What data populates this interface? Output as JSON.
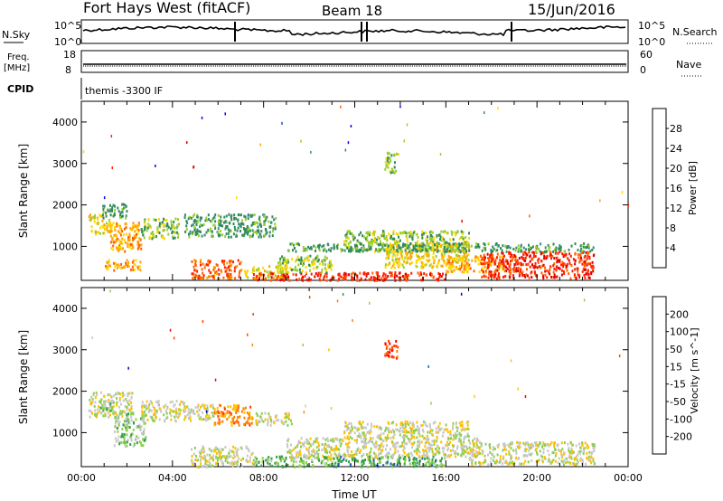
{
  "header": {
    "title": "Fort Hays West (fitACF)",
    "beam": "Beam 18",
    "date": "15/Jun/2016"
  },
  "top_panels": {
    "nsky_label": "N.Sky",
    "nsearch_label": "N.Search",
    "nsky_ticks": [
      "10^5",
      "10^0"
    ],
    "nsearch_ticks": [
      "10^5",
      "10^0"
    ],
    "freq_label_1": "Freq.",
    "freq_label_2": "[MHz]",
    "freq_ticks": [
      "18",
      "8"
    ],
    "nave_label": "Nave",
    "nave_ticks": [
      "60",
      "0"
    ],
    "cpid_label": "CPID",
    "cpid_value": "themis -3300 IF"
  },
  "chart_data": [
    {
      "type": "heatmap",
      "name": "power",
      "ylabel": "Slant Range [km]",
      "ylim": [
        180,
        4500
      ],
      "yticks": [
        1000,
        2000,
        3000,
        4000
      ],
      "xlim": [
        0,
        24
      ],
      "colorbar_label": "Power [dB]",
      "colorbar_ticks": [
        "28",
        "24",
        "20",
        "16",
        "12",
        "8",
        "4"
      ],
      "colors": [
        "#0000ff",
        "#2050c8",
        "#3a8a7a",
        "#2e8b57",
        "#9acd32",
        "#ffd700",
        "#ffa500",
        "#ff6000",
        "#ff2000",
        "#e00000"
      ],
      "patches": [
        {
          "t": [
            0.3,
            1.3
          ],
          "r": [
            1300,
            1800
          ],
          "c": 5
        },
        {
          "t": [
            0.9,
            2.0
          ],
          "r": [
            1700,
            2050
          ],
          "c": 3
        },
        {
          "t": [
            1.2,
            2.6
          ],
          "r": [
            900,
            1600
          ],
          "c": 6
        },
        {
          "t": [
            1.0,
            2.6
          ],
          "r": [
            450,
            700
          ],
          "c": 6
        },
        {
          "t": [
            2.6,
            4.3
          ],
          "r": [
            1200,
            1700
          ],
          "c": 4
        },
        {
          "t": [
            4.5,
            8.5
          ],
          "r": [
            1250,
            1800
          ],
          "c": 3
        },
        {
          "t": [
            4.8,
            7.0
          ],
          "r": [
            250,
            700
          ],
          "c": 7
        },
        {
          "t": [
            7.0,
            9.0
          ],
          "r": [
            250,
            550
          ],
          "c": 5
        },
        {
          "t": [
            7.5,
            16.0
          ],
          "r": [
            200,
            400
          ],
          "c": 8
        },
        {
          "t": [
            8.5,
            11.0
          ],
          "r": [
            400,
            800
          ],
          "c": 4
        },
        {
          "t": [
            11.5,
            17.0
          ],
          "r": [
            900,
            1400
          ],
          "c": 4
        },
        {
          "t": [
            13.3,
            17.0
          ],
          "r": [
            500,
            1100
          ],
          "c": 5
        },
        {
          "t": [
            16.0,
            18.5
          ],
          "r": [
            400,
            800
          ],
          "c": 6
        },
        {
          "t": [
            17.5,
            22.5
          ],
          "r": [
            250,
            900
          ],
          "c": 8
        },
        {
          "t": [
            13.3,
            13.9
          ],
          "r": [
            2800,
            3300
          ],
          "c": 4
        },
        {
          "t": [
            9.0,
            22.5
          ],
          "r": [
            900,
            1100
          ],
          "c": 3
        }
      ]
    },
    {
      "type": "heatmap",
      "name": "velocity",
      "ylabel": "Slant Range [km]",
      "ylim": [
        180,
        4500
      ],
      "yticks": [
        1000,
        2000,
        3000,
        4000
      ],
      "xlim": [
        0,
        24
      ],
      "xticks": [
        "00:00",
        "04:00",
        "08:00",
        "12:00",
        "16:00",
        "20:00",
        "00:00"
      ],
      "xlabel": "Time UT",
      "colorbar_label": "Velocity [m s^-1]",
      "colorbar_ticks": [
        "200",
        "100",
        "50",
        "15",
        "-15",
        "-50",
        "-100",
        "-200"
      ],
      "colors": [
        "#ff0000",
        "#ff4000",
        "#ff8000",
        "#ffc000",
        "#c8c8c8",
        "#8cd050",
        "#30a040",
        "#2060b0",
        "#0000c0"
      ],
      "patches": [
        {
          "t": [
            0.3,
            2.2
          ],
          "r": [
            1400,
            2000
          ],
          "c": 4
        },
        {
          "t": [
            0.8,
            1.4
          ],
          "r": [
            1500,
            1800
          ],
          "c": 5
        },
        {
          "t": [
            1.4,
            2.8
          ],
          "r": [
            700,
            1500
          ],
          "c": 5
        },
        {
          "t": [
            2.6,
            4.5
          ],
          "r": [
            1300,
            1800
          ],
          "c": 4
        },
        {
          "t": [
            4.5,
            5.8
          ],
          "r": [
            1300,
            1700
          ],
          "c": 4
        },
        {
          "t": [
            5.8,
            7.5
          ],
          "r": [
            1200,
            1700
          ],
          "c": 2
        },
        {
          "t": [
            7.5,
            9.2
          ],
          "r": [
            1200,
            1500
          ],
          "c": 4
        },
        {
          "t": [
            4.8,
            7.5
          ],
          "r": [
            200,
            700
          ],
          "c": 4
        },
        {
          "t": [
            7.5,
            11.0
          ],
          "r": [
            200,
            450
          ],
          "c": 5
        },
        {
          "t": [
            9.0,
            13.0
          ],
          "r": [
            400,
            900
          ],
          "c": 4
        },
        {
          "t": [
            11.0,
            16.0
          ],
          "r": [
            200,
            450
          ],
          "c": 6
        },
        {
          "t": [
            11.5,
            17.0
          ],
          "r": [
            900,
            1300
          ],
          "c": 4
        },
        {
          "t": [
            13.0,
            17.5
          ],
          "r": [
            450,
            900
          ],
          "c": 4
        },
        {
          "t": [
            17.0,
            22.5
          ],
          "r": [
            250,
            800
          ],
          "c": 4
        },
        {
          "t": [
            13.3,
            13.9
          ],
          "r": [
            2800,
            3250
          ],
          "c": 1
        }
      ]
    }
  ]
}
